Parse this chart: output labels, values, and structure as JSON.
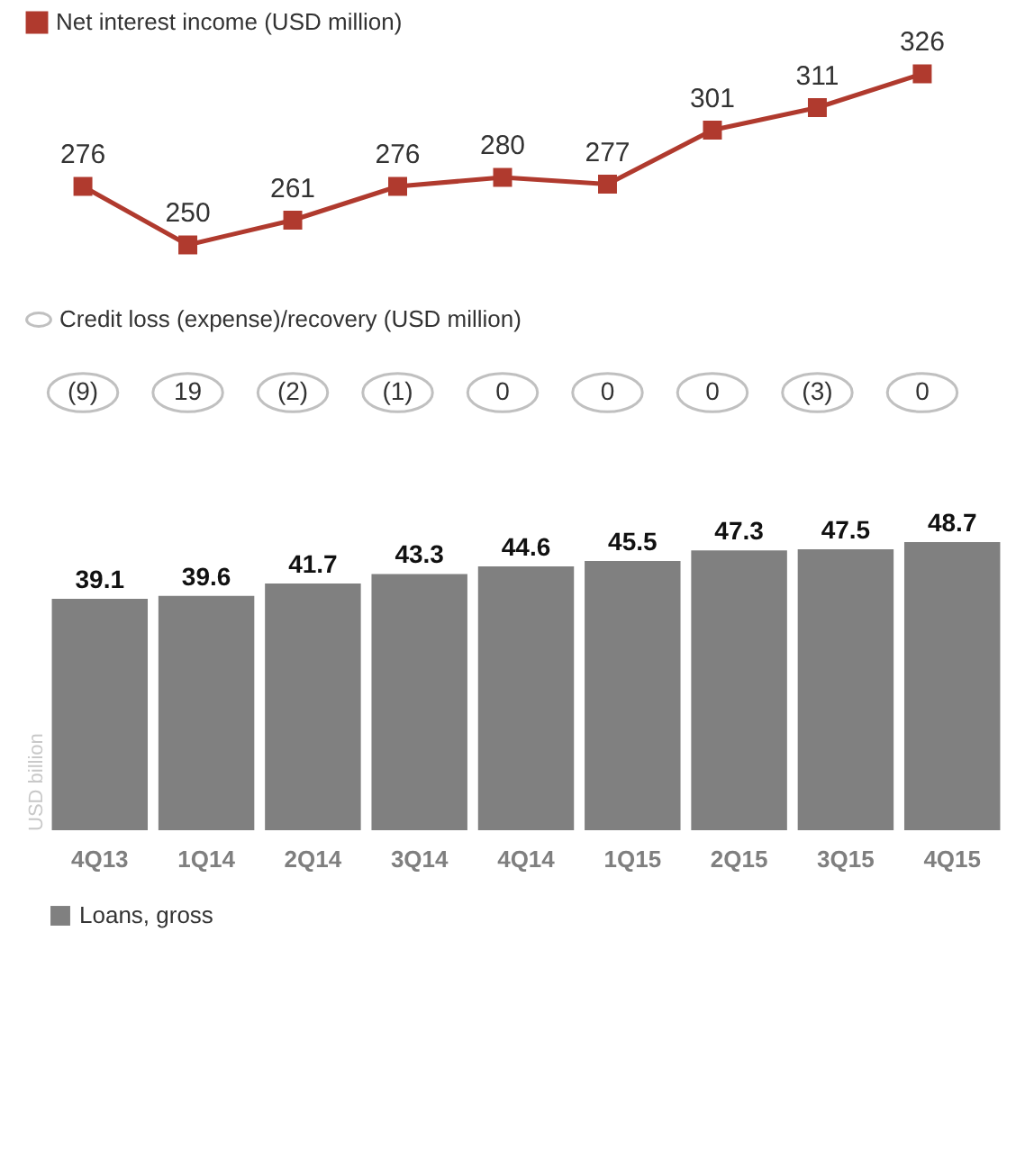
{
  "chart_data": [
    {
      "type": "line",
      "categories": [
        null,
        null,
        null,
        null,
        null,
        null,
        null,
        null,
        null
      ],
      "series": [
        {
          "name": "Net interest income (USD million)",
          "color": "#b03a2e",
          "values": [
            276,
            250,
            261,
            276,
            280,
            277,
            301,
            311,
            326
          ]
        }
      ],
      "data_labels": true,
      "marker": "square",
      "legend": "top",
      "tick_labels": false
    },
    {
      "type": "other",
      "categories": [
        null,
        null,
        null,
        null,
        null,
        null,
        null,
        null,
        null
      ],
      "series": [
        {
          "name": "Credit loss (expense)/recovery (USD million)",
          "color": "#a6a6a6",
          "values": [
            -9,
            19,
            -2,
            -1,
            0,
            0,
            0,
            -3,
            0
          ],
          "value_labels": [
            "(9)",
            "19",
            "(2)",
            "(1)",
            "0",
            "0",
            "0",
            "(3)",
            "0"
          ]
        }
      ],
      "legend": "top"
    },
    {
      "type": "bar",
      "categories": [
        "4Q13",
        "1Q14",
        "2Q14",
        "3Q14",
        "4Q14",
        "1Q15",
        "2Q15",
        "3Q15",
        "4Q15"
      ],
      "series": [
        {
          "name": "Loans, gross",
          "color": "#808080",
          "values": [
            39.1,
            39.6,
            41.7,
            43.3,
            44.6,
            45.5,
            47.3,
            47.5,
            48.7
          ]
        }
      ],
      "ylabel": "USD billion",
      "data_labels": true,
      "legend": "bottom",
      "tick_labels": "x"
    }
  ]
}
